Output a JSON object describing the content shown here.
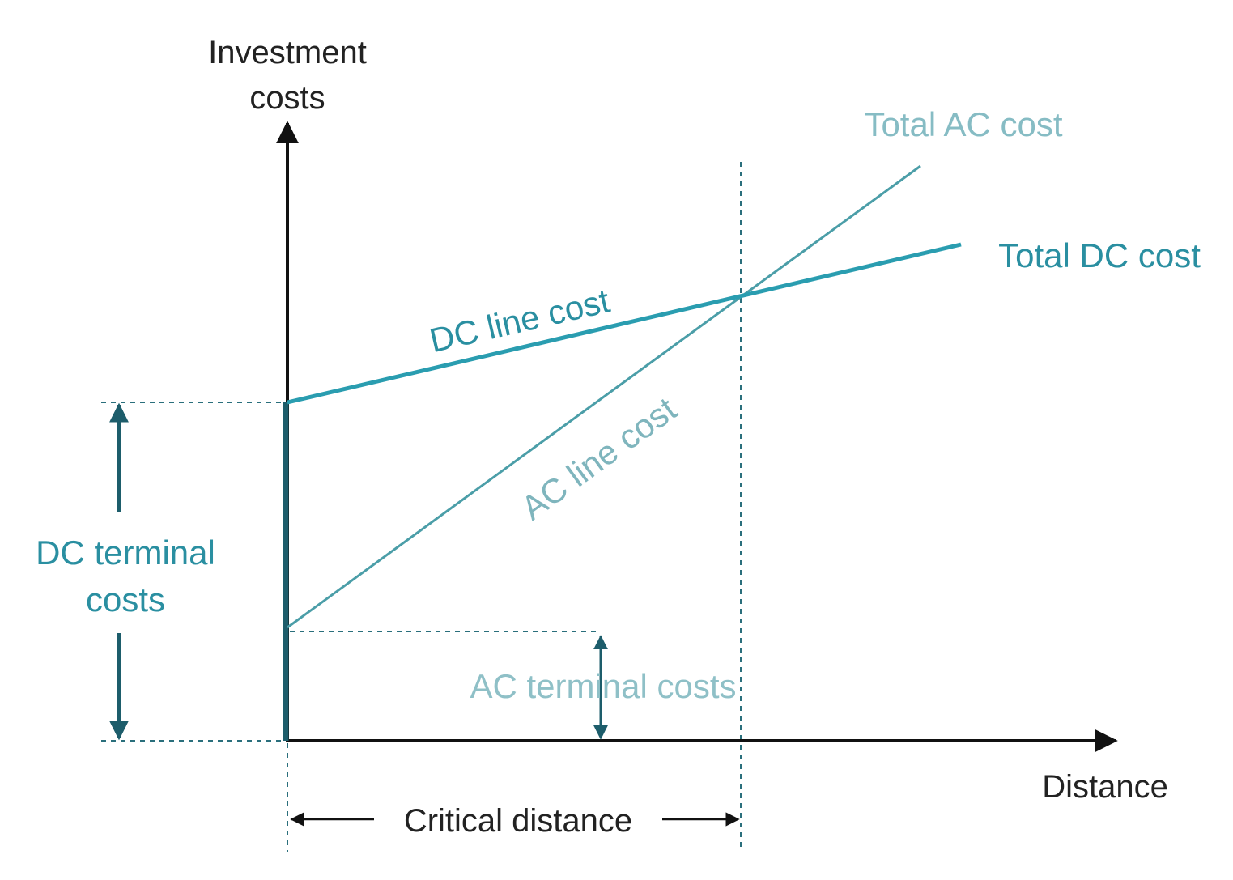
{
  "axes": {
    "y_label": [
      "Investment",
      "costs"
    ],
    "x_label": "Distance"
  },
  "curves": {
    "total_ac": "Total AC cost",
    "total_dc": "Total DC cost",
    "dc_line": "DC line cost",
    "ac_line": "AC line cost"
  },
  "annotations": {
    "dc_terminal": [
      "DC terminal",
      "costs"
    ],
    "ac_terminal": "AC terminal costs",
    "critical_distance": "Critical distance"
  }
}
